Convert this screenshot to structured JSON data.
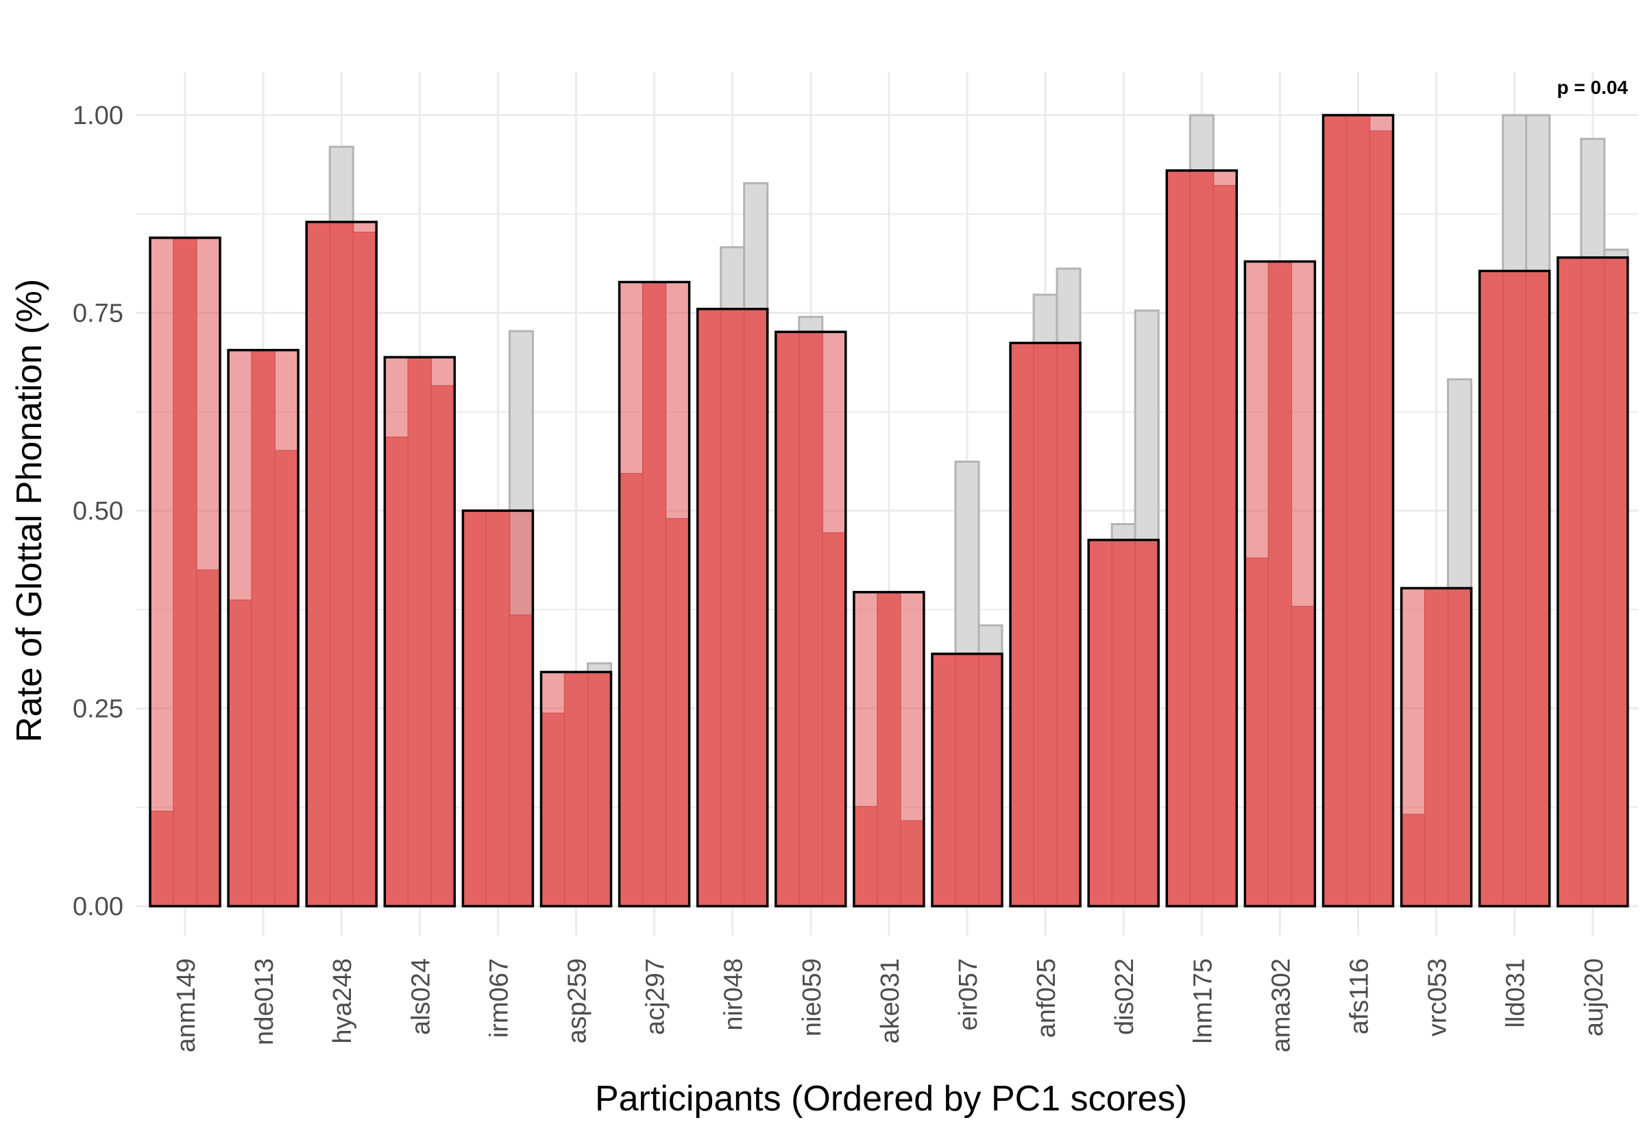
{
  "chart_data": {
    "type": "bar",
    "xlabel": "Participants (Ordered by PC1 scores)",
    "ylabel": "Rate of Glottal Phonation (%)",
    "annotation": "p = 0.04",
    "ylim": [
      0,
      1.0
    ],
    "yticks": [
      "0.00",
      "0.25",
      "0.50",
      "0.75",
      "1.00"
    ],
    "ytick_values": [
      0,
      0.25,
      0.5,
      0.75,
      1.0
    ],
    "grid": true,
    "colors": {
      "main_fill": "#E05A5A",
      "main_stroke": "#000000",
      "sub_fill": "#E86A6A",
      "sub_stroke": "#C85050",
      "background_bar": "#D9D9D9",
      "background_stroke": "#B3B3B3",
      "grid": "#EBEBEB"
    },
    "categories": [
      "anm149",
      "nde013",
      "hya248",
      "als024",
      "irm067",
      "asp259",
      "acj297",
      "nir048",
      "nie059",
      "ake031",
      "eir057",
      "anf025",
      "dis022",
      "lnm175",
      "ama302",
      "afs116",
      "vrc053",
      "lld031",
      "auj020"
    ],
    "values": [
      0.845,
      0.703,
      0.865,
      0.694,
      0.5,
      0.296,
      0.789,
      0.755,
      0.726,
      0.397,
      0.319,
      0.712,
      0.463,
      0.93,
      0.815,
      1.0,
      0.402,
      0.803,
      0.82
    ],
    "sub_bars": [
      [
        0.12,
        0.845,
        0.425
      ],
      [
        0.387,
        0.703,
        0.576
      ],
      [
        0.865,
        0.865,
        0.852
      ],
      [
        0.593,
        0.694,
        0.658
      ],
      [
        0.5,
        0.5,
        0.368
      ],
      [
        0.244,
        0.296,
        0.296
      ],
      [
        0.547,
        0.789,
        0.49
      ],
      [
        0.755,
        0.755,
        0.755
      ],
      [
        0.726,
        0.726,
        0.472
      ],
      [
        0.126,
        0.397,
        0.108
      ],
      [
        0.319,
        0.319,
        0.319
      ],
      [
        0.712,
        0.712,
        0.712
      ],
      [
        0.463,
        0.463,
        0.463
      ],
      [
        0.93,
        0.93,
        0.911
      ],
      [
        0.44,
        0.815,
        0.379
      ],
      [
        1.0,
        1.0,
        0.98
      ],
      [
        0.116,
        0.402,
        0.402
      ],
      [
        0.803,
        0.803,
        0.803
      ],
      [
        0.82,
        0.82,
        0.82
      ]
    ],
    "background_bars": [
      null,
      null,
      [
        0.96,
        null
      ],
      null,
      [
        null,
        0.727
      ],
      [
        null,
        0.307
      ],
      null,
      [
        0.833,
        0.914
      ],
      [
        0.745,
        null
      ],
      null,
      [
        0.562,
        0.355
      ],
      [
        0.773,
        0.806
      ],
      [
        0.483,
        0.753
      ],
      [
        1.0,
        null
      ],
      null,
      null,
      [
        null,
        0.666
      ],
      [
        1.0,
        1.0
      ],
      [
        0.97,
        0.83
      ]
    ]
  }
}
